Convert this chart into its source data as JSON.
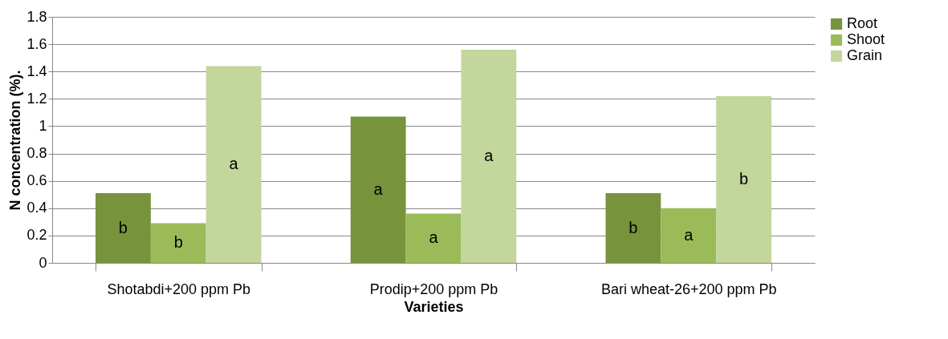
{
  "chart_data": {
    "type": "bar",
    "xlabel": "Varieties",
    "ylabel": "N concentration (%).",
    "categories": [
      "Shotabdi+200 ppm Pb",
      "Prodip+200 ppm Pb",
      "Bari wheat-26+200 ppm Pb"
    ],
    "series": [
      {
        "name": "Root",
        "color": "#77933c",
        "values": [
          0.51,
          1.07,
          0.51
        ],
        "value_labels": [
          "b",
          "a",
          "b"
        ]
      },
      {
        "name": "Shoot",
        "color": "#9bbb59",
        "values": [
          0.29,
          0.36,
          0.4
        ],
        "value_labels": [
          "b",
          "a",
          "a"
        ]
      },
      {
        "name": "Grain",
        "color": "#c3d69b",
        "values": [
          1.44,
          1.56,
          1.22
        ],
        "value_labels": [
          "a",
          "a",
          "b"
        ]
      }
    ],
    "ylim": [
      0,
      1.8
    ],
    "yticks": [
      0,
      0.2,
      0.4,
      0.6,
      0.8,
      1,
      1.2,
      1.4,
      1.6,
      1.8
    ],
    "grid": "y",
    "legend": "right"
  }
}
